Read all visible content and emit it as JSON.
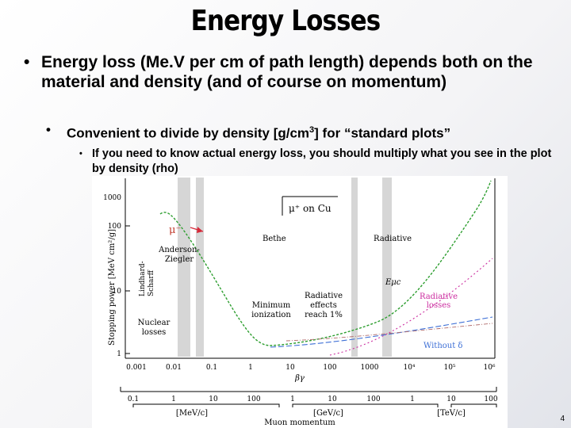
{
  "slide": {
    "title": "Energy Losses",
    "bullet1": "Energy loss (Me.V per cm of path length) depends both on the material and density (and of course on momentum)",
    "bullet2_pre": "Convenient to divide by density [g/cm",
    "bullet2_sup": "3",
    "bullet2_post": "] for “standard plots”",
    "bullet3": "If you need to know actual energy loss, you should multiply what you see in the plot by density (rho)",
    "bullet_marker": "•",
    "page_number": "4"
  },
  "figure": {
    "ylabel": "Stopping power [MeV cm²/g]",
    "legend": "μ⁺ on Cu",
    "mu_minus": "μ⁻",
    "regions": [
      "Bethe",
      "Radiative"
    ],
    "labels": {
      "anderson": [
        "Anderson-",
        "Ziegler"
      ],
      "lindhard": [
        "Lindhard-",
        "Scharff"
      ],
      "nuclear": [
        "Nuclear",
        "losses"
      ],
      "minimum": [
        "Minimum",
        "ionization"
      ],
      "radiative_effects": [
        "Radiative",
        "effects",
        "reach 1%"
      ],
      "radiative_losses": [
        "Radiative",
        "losses"
      ],
      "emuc": "Eμc",
      "without_delta": "Without δ"
    },
    "y_ticks": [
      "1000",
      "100",
      "10",
      "1"
    ],
    "betagamma_label": "βγ",
    "betagamma_ticks": [
      "0.001",
      "0.01",
      "0.1",
      "1",
      "10",
      "100",
      "1000",
      "10⁴",
      "10⁵",
      "10⁶"
    ],
    "momentum_ticks": [
      "0.1",
      "1",
      "10",
      "100",
      "1",
      "10",
      "100",
      "1",
      "10",
      "100"
    ],
    "unit_labels": [
      "[MeV/c]",
      "[GeV/c]",
      "[TeV/c]"
    ],
    "momentum_label": "Muon momentum",
    "colors": {
      "total": "#2d9e2f",
      "radiative": "#cc2ea0",
      "without": "#3d6fd6",
      "arrow": "#d62a3a"
    }
  }
}
